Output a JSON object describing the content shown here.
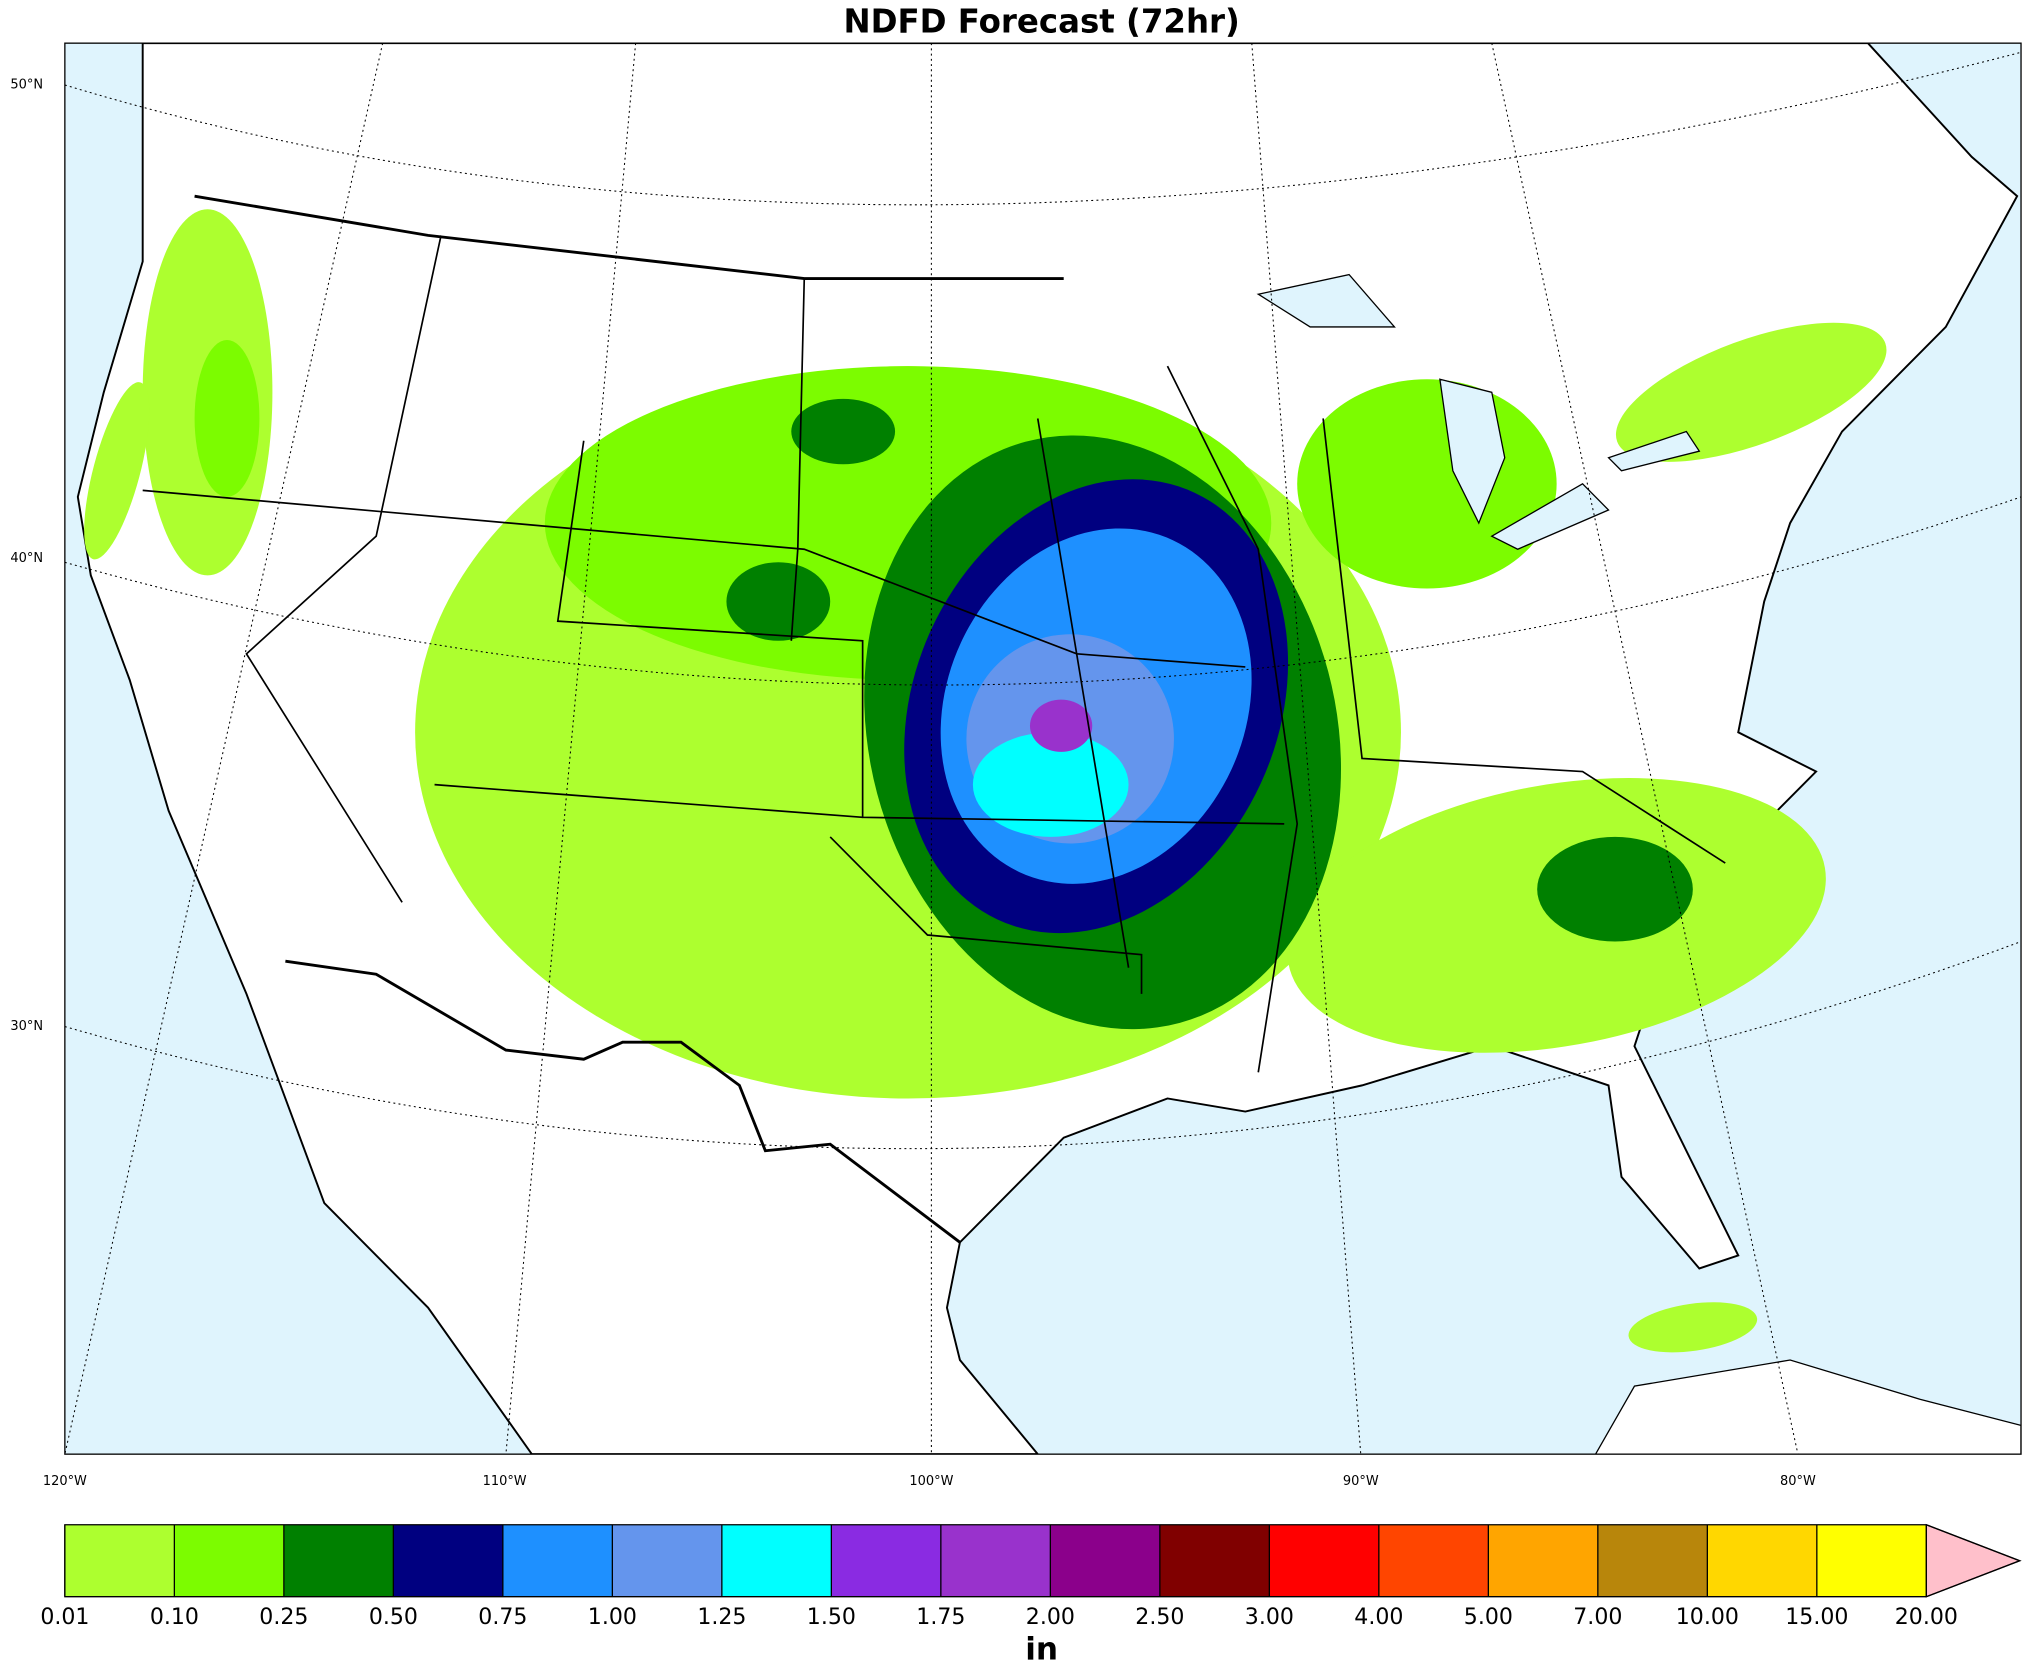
{
  "title": "NDFD Forecast (72hr)",
  "map": {
    "lat_labels": [
      "50°N",
      "40°N",
      "30°N"
    ],
    "lon_labels": [
      "120°W",
      "110°W",
      "100°W",
      "90°W",
      "80°W"
    ]
  },
  "colorbar": {
    "levels": [
      {
        "value": 0.01,
        "label": "0.01"
      },
      {
        "value": 0.1,
        "label": "0.10"
      },
      {
        "value": 0.25,
        "label": "0.25"
      },
      {
        "value": 0.5,
        "label": "0.50"
      },
      {
        "value": 0.75,
        "label": "0.75"
      },
      {
        "value": 1,
        "label": "1.00"
      },
      {
        "value": 1.25,
        "label": "1.25"
      },
      {
        "value": 1.5,
        "label": "1.50"
      },
      {
        "value": 1.75,
        "label": "1.75"
      },
      {
        "value": 2,
        "label": "2.00"
      },
      {
        "value": 2.5,
        "label": "2.50"
      },
      {
        "value": 3,
        "label": "3.00"
      },
      {
        "value": 4,
        "label": "4.00"
      },
      {
        "value": 5,
        "label": "5.00"
      },
      {
        "value": 7,
        "label": "7.00"
      },
      {
        "value": 10,
        "label": "10.00"
      },
      {
        "value": 15,
        "label": "15.00"
      },
      {
        "value": 20,
        "label": "20.00"
      }
    ],
    "colors": [
      "#adff2f",
      "#7cfc00",
      "#008000",
      "#000080",
      "#1e90ff",
      "#6495ed",
      "#00ffff",
      "#8a2be2",
      "#9932cc",
      "#8b008b",
      "#800000",
      "#ff0000",
      "#ff4500",
      "#ffa500",
      "#b8860b",
      "#ffd700",
      "#ffff00"
    ],
    "extend_color": "#ffc0cb",
    "unit": "in"
  }
}
